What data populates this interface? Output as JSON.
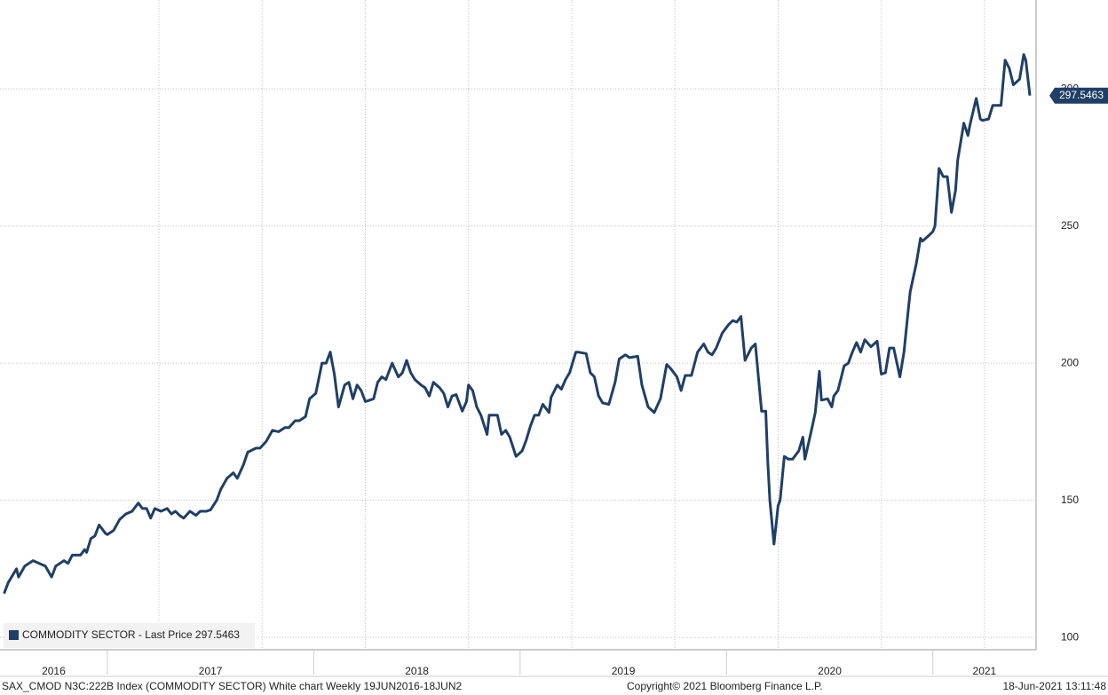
{
  "chart_data": {
    "type": "line",
    "footer": "SAX_CMOD N3C:222B Index (COMMODITY SECTOR) White chart  Weekly 19JUN2016-18JUN2",
    "copyright": "Copyright© 2021 Bloomberg Finance L.P.",
    "timestamp": "18-Jun-2021 13:11:48",
    "xlim": [
      2016.48,
      2021.5
    ],
    "xticks": [
      2016,
      2017,
      2018,
      2019,
      2020,
      2021
    ],
    "xgrid": [
      2017.25,
      2017.75,
      2018.25,
      2018.75,
      2019.25,
      2019.75,
      2020.25,
      2020.75,
      2021.25
    ],
    "ylim": [
      95.5,
      332.4
    ],
    "yticks": [
      100,
      150,
      200,
      250,
      300
    ],
    "grid": true,
    "legend": "lower left",
    "x": [
      2016.5,
      2016.52,
      2016.56,
      2016.57,
      2016.6,
      2016.64,
      2016.67,
      2016.7,
      2016.73,
      2016.75,
      2016.79,
      2016.81,
      2016.83,
      2016.87,
      2016.89,
      2016.9,
      2016.92,
      2016.94,
      2016.96,
      2016.99,
      2017.0,
      2017.03,
      2017.06,
      2017.09,
      2017.12,
      2017.15,
      2017.17,
      2017.19,
      2017.21,
      2017.23,
      2017.26,
      2017.29,
      2017.31,
      2017.33,
      2017.35,
      2017.37,
      2017.4,
      2017.43,
      2017.45,
      2017.48,
      2017.5,
      2017.53,
      2017.55,
      2017.58,
      2017.61,
      2017.63,
      2017.66,
      2017.68,
      2017.72,
      2017.74,
      2017.77,
      2017.8,
      2017.83,
      2017.86,
      2017.88,
      2017.91,
      2017.93,
      2017.96,
      2017.98,
      2018.01,
      2018.04,
      2018.06,
      2018.08,
      2018.1,
      2018.12,
      2018.15,
      2018.17,
      2018.19,
      2018.21,
      2018.23,
      2018.25,
      2018.29,
      2018.31,
      2018.33,
      2018.35,
      2018.38,
      2018.41,
      2018.43,
      2018.45,
      2018.47,
      2018.49,
      2018.52,
      2018.54,
      2018.56,
      2018.58,
      2018.61,
      2018.63,
      2018.65,
      2018.67,
      2018.69,
      2018.72,
      2018.74,
      2018.75,
      2018.77,
      2018.79,
      2018.81,
      2018.84,
      2018.85,
      2018.89,
      2018.91,
      2018.93,
      2018.95,
      2018.98,
      2019.01,
      2019.03,
      2019.05,
      2019.07,
      2019.09,
      2019.11,
      2019.14,
      2019.15,
      2019.18,
      2019.2,
      2019.22,
      2019.24,
      2019.27,
      2019.28,
      2019.32,
      2019.34,
      2019.36,
      2019.38,
      2019.4,
      2019.43,
      2019.46,
      2019.48,
      2019.51,
      2019.53,
      2019.57,
      2019.59,
      2019.62,
      2019.65,
      2019.68,
      2019.71,
      2019.73,
      2019.76,
      2019.78,
      2019.8,
      2019.83,
      2019.86,
      2019.89,
      2019.91,
      2019.93,
      2019.95,
      2019.98,
      2020.01,
      2020.03,
      2020.05,
      2020.07,
      2020.09,
      2020.12,
      2020.14,
      2020.17,
      2020.19,
      2020.2,
      2020.21,
      2020.23,
      2020.25,
      2020.26,
      2020.28,
      2020.3,
      2020.32,
      2020.35,
      2020.37,
      2020.38,
      2020.41,
      2020.43,
      2020.45,
      2020.46,
      2020.49,
      2020.51,
      2020.52,
      2020.54,
      2020.57,
      2020.59,
      2020.61,
      2020.63,
      2020.65,
      2020.67,
      2020.7,
      2020.73,
      2020.75,
      2020.77,
      2020.79,
      2020.81,
      2020.84,
      2020.86,
      2020.88,
      2020.89,
      2020.92,
      2020.94,
      2020.95,
      2020.98,
      2021.0,
      2021.01,
      2021.03,
      2021.05,
      2021.07,
      2021.09,
      2021.11,
      2021.12,
      2021.15,
      2021.17,
      2021.18,
      2021.21,
      2021.23,
      2021.24,
      2021.27,
      2021.29,
      2021.31,
      2021.33,
      2021.35,
      2021.37,
      2021.39,
      2021.42,
      2021.44,
      2021.45,
      2021.47
    ],
    "series": [
      {
        "name": "COMMODITY SECTOR - Last Price 297.5463",
        "color": "#1f3f66",
        "values": [
          116,
          120,
          125,
          122,
          126,
          128,
          127,
          126,
          122,
          126,
          128,
          127,
          130,
          130,
          132,
          131,
          136,
          137,
          141,
          138,
          137.5,
          139,
          143,
          145,
          146,
          149,
          147,
          147,
          143.5,
          147,
          146,
          147,
          145,
          146,
          144.5,
          143.5,
          146,
          144.5,
          146,
          146,
          146.5,
          150,
          154,
          158,
          160,
          158,
          163,
          167.5,
          169,
          169,
          171.5,
          175.5,
          175,
          176.5,
          176.5,
          179,
          179,
          180.5,
          187,
          189,
          200,
          200,
          204,
          196,
          184,
          192,
          193,
          187,
          192,
          190,
          186,
          187,
          193,
          195,
          194,
          200,
          195,
          196.5,
          201,
          196.5,
          194,
          192,
          191,
          188,
          193,
          191,
          189,
          184,
          188,
          188.5,
          182.5,
          186,
          192,
          190,
          184,
          181,
          174,
          181,
          181,
          174,
          175.5,
          173,
          166,
          168,
          172,
          177,
          181,
          181,
          185,
          182,
          187.5,
          192,
          190.5,
          194,
          196.5,
          204,
          204,
          203.5,
          196.5,
          195,
          188,
          185.5,
          185,
          193,
          201.5,
          203,
          202,
          202.5,
          192,
          184,
          182,
          187,
          199.5,
          198,
          195,
          190,
          195.5,
          195.5,
          204,
          207,
          204,
          203,
          205.5,
          211,
          214,
          215.5,
          215,
          217,
          201,
          205.5,
          207,
          182.5,
          182.5,
          164,
          150,
          134,
          148,
          150,
          166,
          165,
          165,
          168,
          173,
          165,
          175,
          182,
          197,
          186.5,
          187,
          184,
          188,
          190,
          199,
          200,
          204,
          207.5,
          204,
          208.5,
          206,
          208,
          196,
          196.5,
          205.5,
          205.5,
          195,
          204,
          219,
          226,
          236.5,
          245.5,
          244.5,
          246.5,
          248,
          250,
          271,
          268,
          268,
          255,
          263,
          274,
          287.5,
          283,
          287,
          296.5,
          289,
          288.5,
          289,
          294,
          294,
          294,
          310.5,
          307.5,
          301.5,
          303.5,
          312.5,
          310.5,
          297.5463
        ]
      }
    ]
  }
}
